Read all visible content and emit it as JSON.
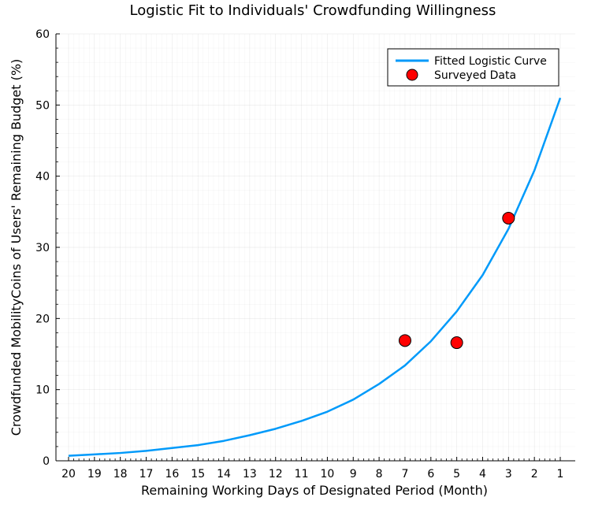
{
  "chart_data": {
    "type": "line",
    "title": "Logistic Fit to Individuals' Crowdfunding Willingness",
    "xlabel": "Remaining Working Days of Designated Period (Month)",
    "ylabel": "Crowdfunded MobilityCoins of Users' Remaining Budget (%)",
    "categories": [
      "20",
      "19",
      "18",
      "17",
      "16",
      "15",
      "14",
      "13",
      "12",
      "11",
      "10",
      "9",
      "8",
      "7",
      "6",
      "5",
      "4",
      "3",
      "2",
      "1"
    ],
    "ylim": [
      0,
      60
    ],
    "yticks": [
      0,
      10,
      20,
      30,
      40,
      50,
      60
    ],
    "grid": true,
    "legend_position": "top-right",
    "series": [
      {
        "name": "Fitted Logistic Curve",
        "kind": "line",
        "color": "#009AFA",
        "x": [
          "20",
          "19",
          "18",
          "17",
          "16",
          "15",
          "14",
          "13",
          "12",
          "11",
          "10",
          "9",
          "8",
          "7",
          "6",
          "5",
          "4",
          "3",
          "2",
          "1"
        ],
        "values": [
          0.7,
          0.9,
          1.1,
          1.4,
          1.8,
          2.2,
          2.8,
          3.6,
          4.5,
          5.6,
          6.9,
          8.6,
          10.8,
          13.4,
          16.8,
          21.0,
          26.1,
          32.6,
          40.8,
          51.0
        ]
      },
      {
        "name": "Surveyed Data",
        "kind": "scatter",
        "color": "#FF0000",
        "x": [
          "7",
          "5",
          "3"
        ],
        "values": [
          16.9,
          16.6,
          34.1
        ]
      }
    ]
  }
}
